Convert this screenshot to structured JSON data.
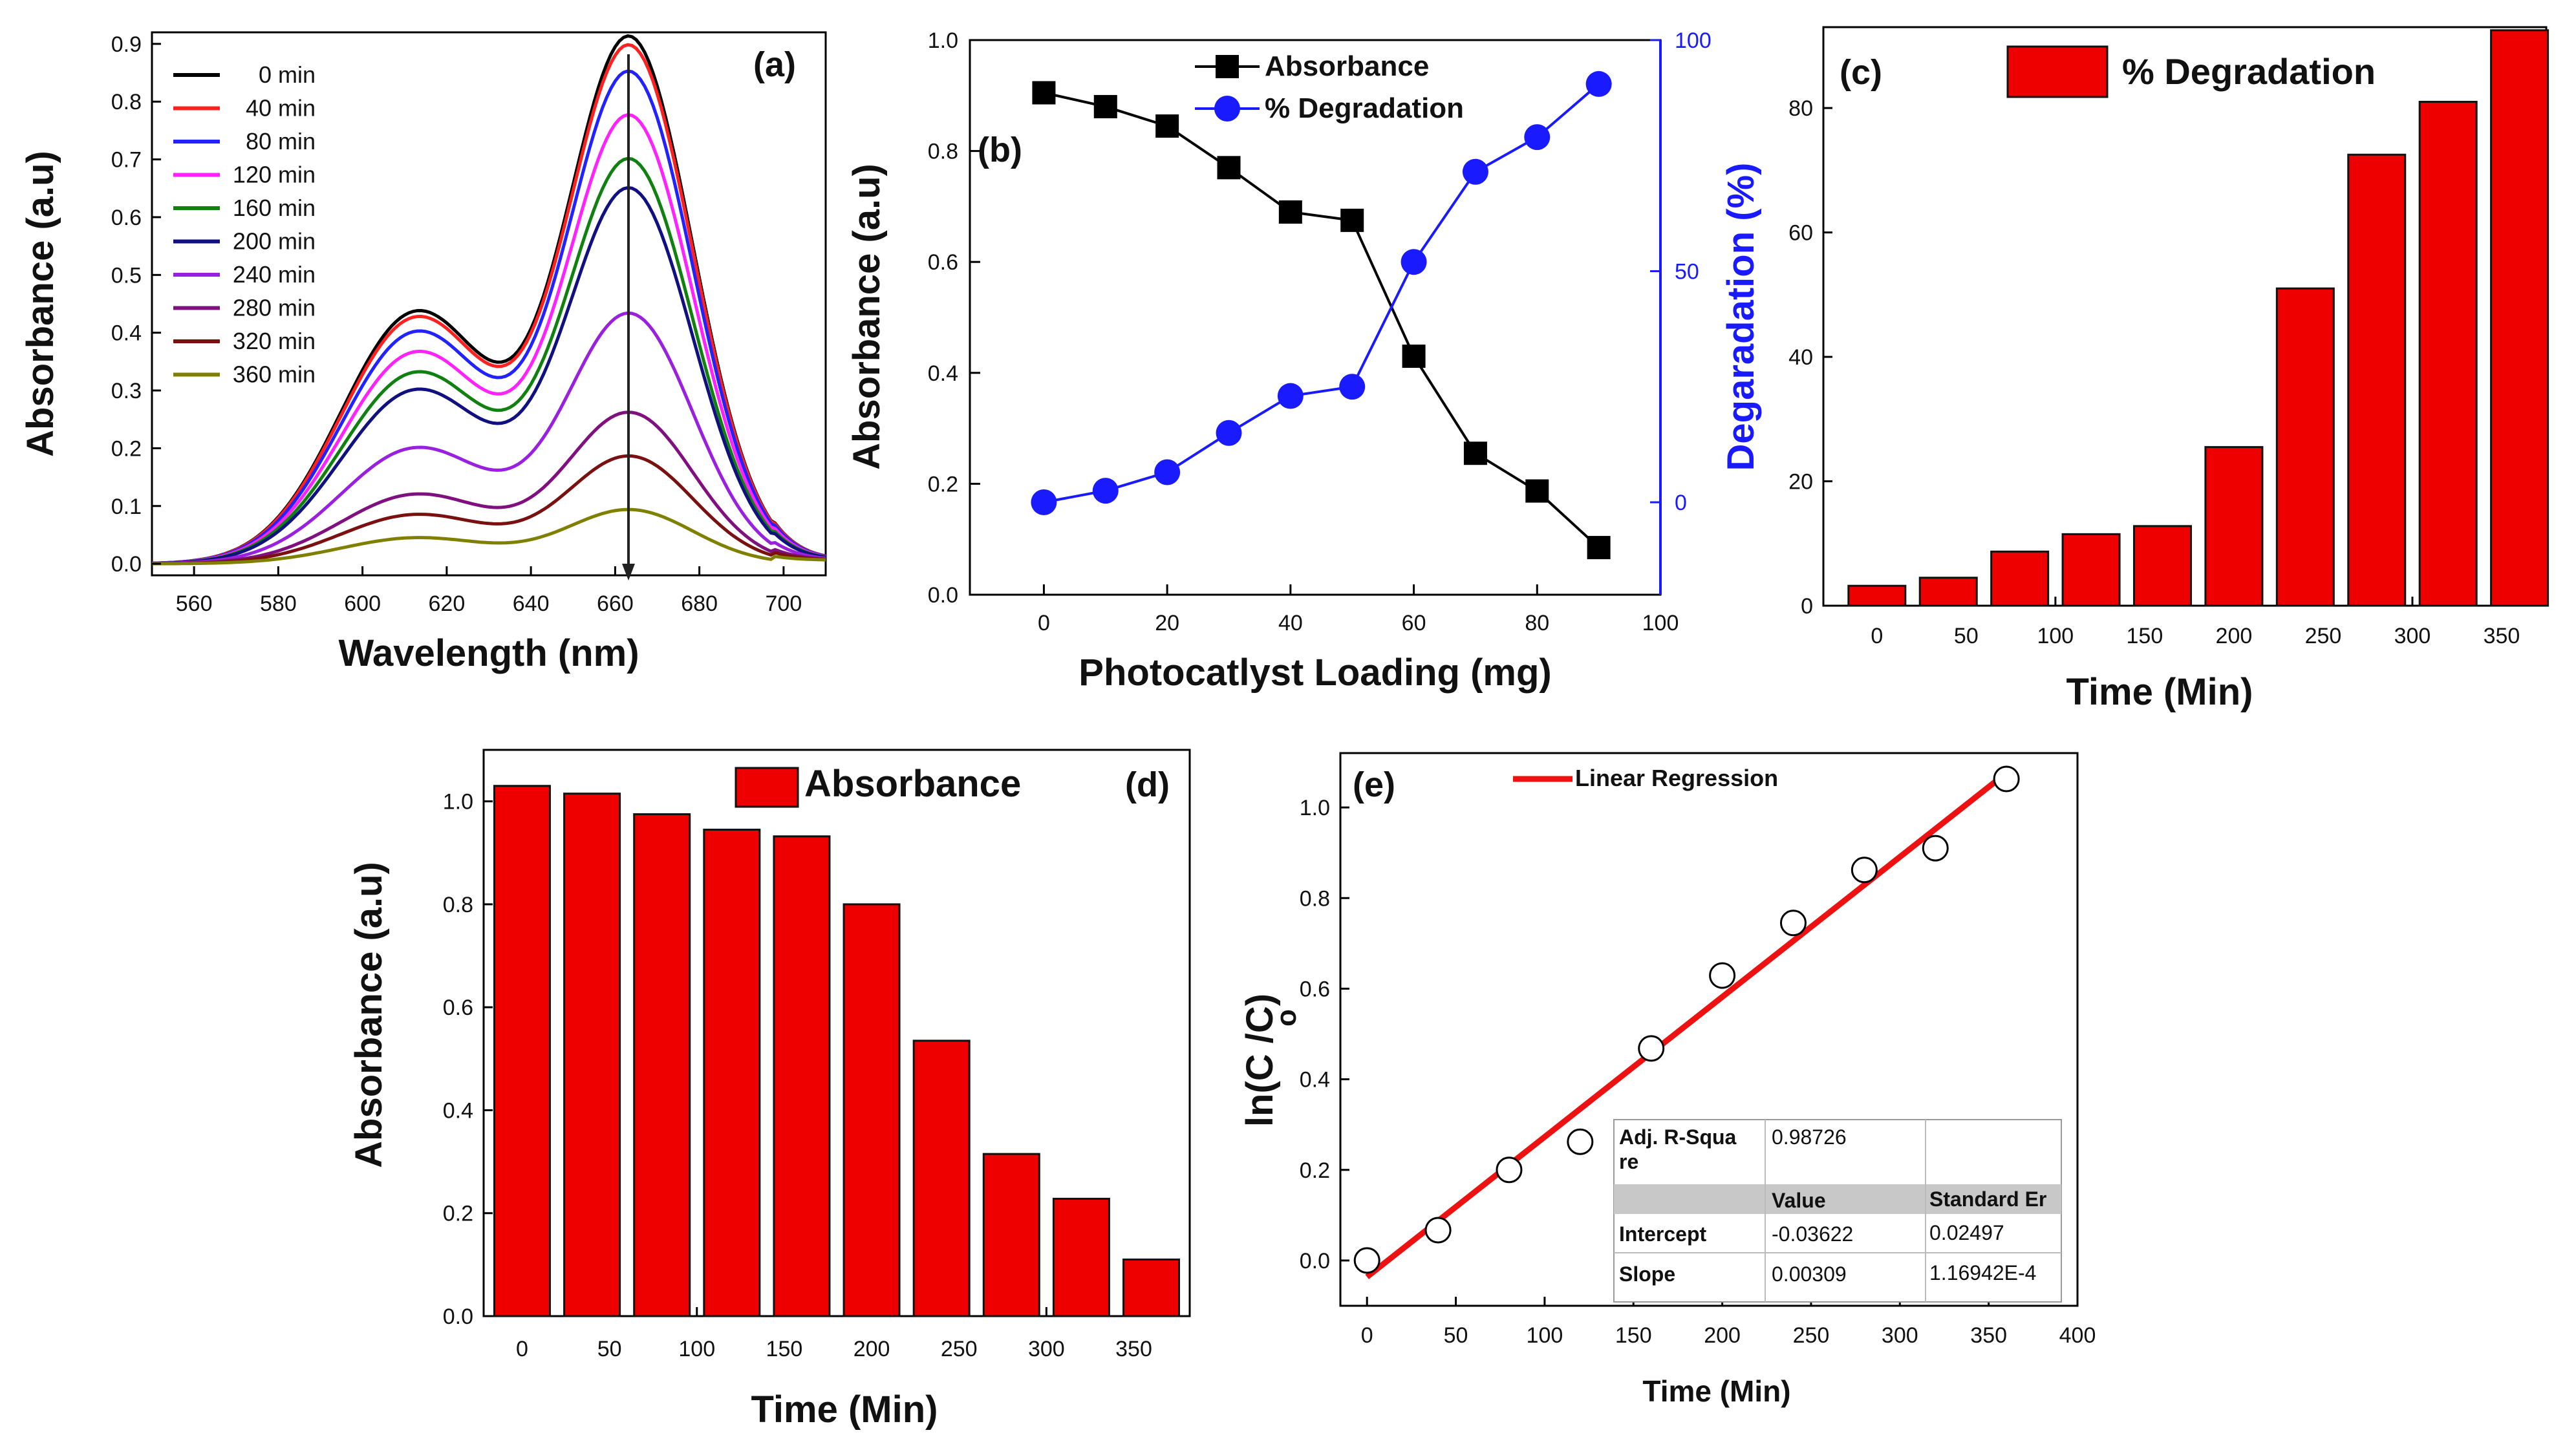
{
  "chart_data": [
    {
      "id": "a",
      "type": "line",
      "panel_label": "(a)",
      "xlabel": "Wavelength (nm)",
      "ylabel": "Absorbance (a.u)",
      "xlim": [
        550,
        710
      ],
      "ylim": [
        -0.02,
        0.92
      ],
      "xticks": [
        560,
        580,
        600,
        620,
        640,
        660,
        680,
        700
      ],
      "yticks": [
        0.0,
        0.1,
        0.2,
        0.3,
        0.4,
        0.5,
        0.6,
        0.7,
        0.8,
        0.9
      ],
      "ytick_labels": [
        "0.0",
        "0.1",
        "0.2",
        "0.3",
        "0.4",
        "0.5",
        "0.6",
        "0.7",
        "0.8",
        "0.9"
      ],
      "annotation": "downward arrow at ~663 nm indicating decreasing absorbance with time",
      "series": [
        {
          "name": "0 min",
          "color": "#000000",
          "peak": 0.905,
          "shoulder": 0.435
        },
        {
          "name": "40 min",
          "color": "#ff2020",
          "peak": 0.89,
          "shoulder": 0.425
        },
        {
          "name": "80 min",
          "color": "#2222ff",
          "peak": 0.845,
          "shoulder": 0.4
        },
        {
          "name": "120 min",
          "color": "#ff22ff",
          "peak": 0.77,
          "shoulder": 0.365
        },
        {
          "name": "160 min",
          "color": "#108010",
          "peak": 0.695,
          "shoulder": 0.33
        },
        {
          "name": "200 min",
          "color": "#101080",
          "peak": 0.645,
          "shoulder": 0.3
        },
        {
          "name": "240 min",
          "color": "#9a20e0",
          "peak": 0.43,
          "shoulder": 0.2
        },
        {
          "name": "280 min",
          "color": "#801080",
          "peak": 0.26,
          "shoulder": 0.12
        },
        {
          "name": "320 min",
          "color": "#7a1010",
          "peak": 0.185,
          "shoulder": 0.085
        },
        {
          "name": "360 min",
          "color": "#808000",
          "peak": 0.093,
          "shoulder": 0.045
        }
      ]
    },
    {
      "id": "b",
      "type": "line",
      "panel_label": "(b)",
      "xlabel": "Photocatlyst  Loading (mg)",
      "ylabel": "Absorbance (a.u)",
      "y2label": "Degaradation (%)",
      "xlim": [
        -12,
        100
      ],
      "ylim": [
        0.0,
        1.0
      ],
      "y2lim": [
        -20,
        100
      ],
      "xticks": [
        0,
        20,
        40,
        60,
        80,
        100
      ],
      "yticks": [
        0.0,
        0.2,
        0.4,
        0.6,
        0.8,
        1.0
      ],
      "ytick_labels": [
        "0.0",
        "0.2",
        "0.4",
        "0.6",
        "0.8",
        "1.0"
      ],
      "y2ticks": [
        0,
        50,
        100
      ],
      "x": [
        0,
        10,
        20,
        30,
        40,
        50,
        60,
        70,
        80,
        90
      ],
      "series": [
        {
          "name": "Absorbance",
          "axis": "left",
          "marker": "square",
          "color": "#000000",
          "values": [
            0.905,
            0.88,
            0.845,
            0.77,
            0.69,
            0.675,
            0.43,
            0.255,
            0.187,
            0.085
          ]
        },
        {
          "name": "% Degradation",
          "axis": "right",
          "marker": "circle",
          "color": "#1a1aff",
          "values": [
            0,
            2.5,
            6.5,
            15,
            23,
            25,
            52,
            71.5,
            79,
            90.5
          ]
        }
      ]
    },
    {
      "id": "c",
      "type": "bar",
      "panel_label": "(c)",
      "legend": "% Degradation",
      "xlabel": "Time (Min)",
      "ylabel": "",
      "xlim": [
        -30,
        375
      ],
      "ylim": [
        0,
        93
      ],
      "xticks": [
        0,
        50,
        100,
        150,
        200,
        250,
        300,
        350
      ],
      "yticks": [
        0,
        20,
        40,
        60,
        80
      ],
      "x": [
        0,
        40,
        80,
        120,
        160,
        200,
        240,
        280,
        320,
        360
      ],
      "values": [
        3.2,
        4.5,
        8.7,
        11.5,
        12.8,
        25.5,
        51,
        72.5,
        81,
        92.5
      ]
    },
    {
      "id": "d",
      "type": "bar",
      "panel_label": "(d)",
      "legend": "Absorbance",
      "xlabel": "Time (Min)",
      "ylabel": "Absorbance (a.u)",
      "xlim": [
        -22,
        382
      ],
      "ylim": [
        0.0,
        1.1
      ],
      "xticks": [
        0,
        50,
        100,
        150,
        200,
        250,
        300,
        350
      ],
      "yticks": [
        0.0,
        0.2,
        0.4,
        0.6,
        0.8,
        1.0
      ],
      "ytick_labels": [
        "0.0",
        "0.2",
        "0.4",
        "0.6",
        "0.8",
        "1.0"
      ],
      "x": [
        0,
        40,
        80,
        120,
        160,
        200,
        240,
        280,
        320,
        360
      ],
      "values": [
        1.03,
        1.015,
        0.975,
        0.945,
        0.932,
        0.8,
        0.535,
        0.315,
        0.228,
        0.11
      ]
    },
    {
      "id": "e",
      "type": "scatter",
      "panel_label": "(e)",
      "legend": "Linear Regression",
      "xlabel": "Time (Min)",
      "ylabel": "ln(C /C)",
      "ylabel_subscript": "o",
      "xlim": [
        -15,
        400
      ],
      "ylim": [
        -0.1,
        1.12
      ],
      "xticks": [
        0,
        50,
        100,
        150,
        200,
        250,
        300,
        350,
        400
      ],
      "yticks": [
        0.0,
        0.2,
        0.4,
        0.6,
        0.8,
        1.0
      ],
      "ytick_labels": [
        "0.0",
        "0.2",
        "0.4",
        "0.6",
        "0.8",
        "1.0"
      ],
      "x": [
        0,
        40,
        80,
        120,
        160,
        200,
        240,
        280,
        320,
        360
      ],
      "values": [
        0.0,
        0.067,
        0.2,
        0.262,
        0.468,
        0.629,
        0.745,
        0.862,
        0.91,
        1.063
      ],
      "fit": {
        "intercept": -0.03622,
        "slope": 0.00309,
        "x_range": [
          0,
          360
        ],
        "color": "#ee1111"
      },
      "stats_table": {
        "adj_label": "Adj. R-Squa",
        "adj_label2": "re",
        "adj_value": "0.98726",
        "col_value": "Value",
        "col_se": "Standard Er",
        "rows": [
          {
            "name": "Intercept",
            "value": "-0.03622",
            "se": "0.02497"
          },
          {
            "name": "Slope",
            "value": "0.00309",
            "se": "1.16942E-4"
          }
        ]
      }
    }
  ]
}
